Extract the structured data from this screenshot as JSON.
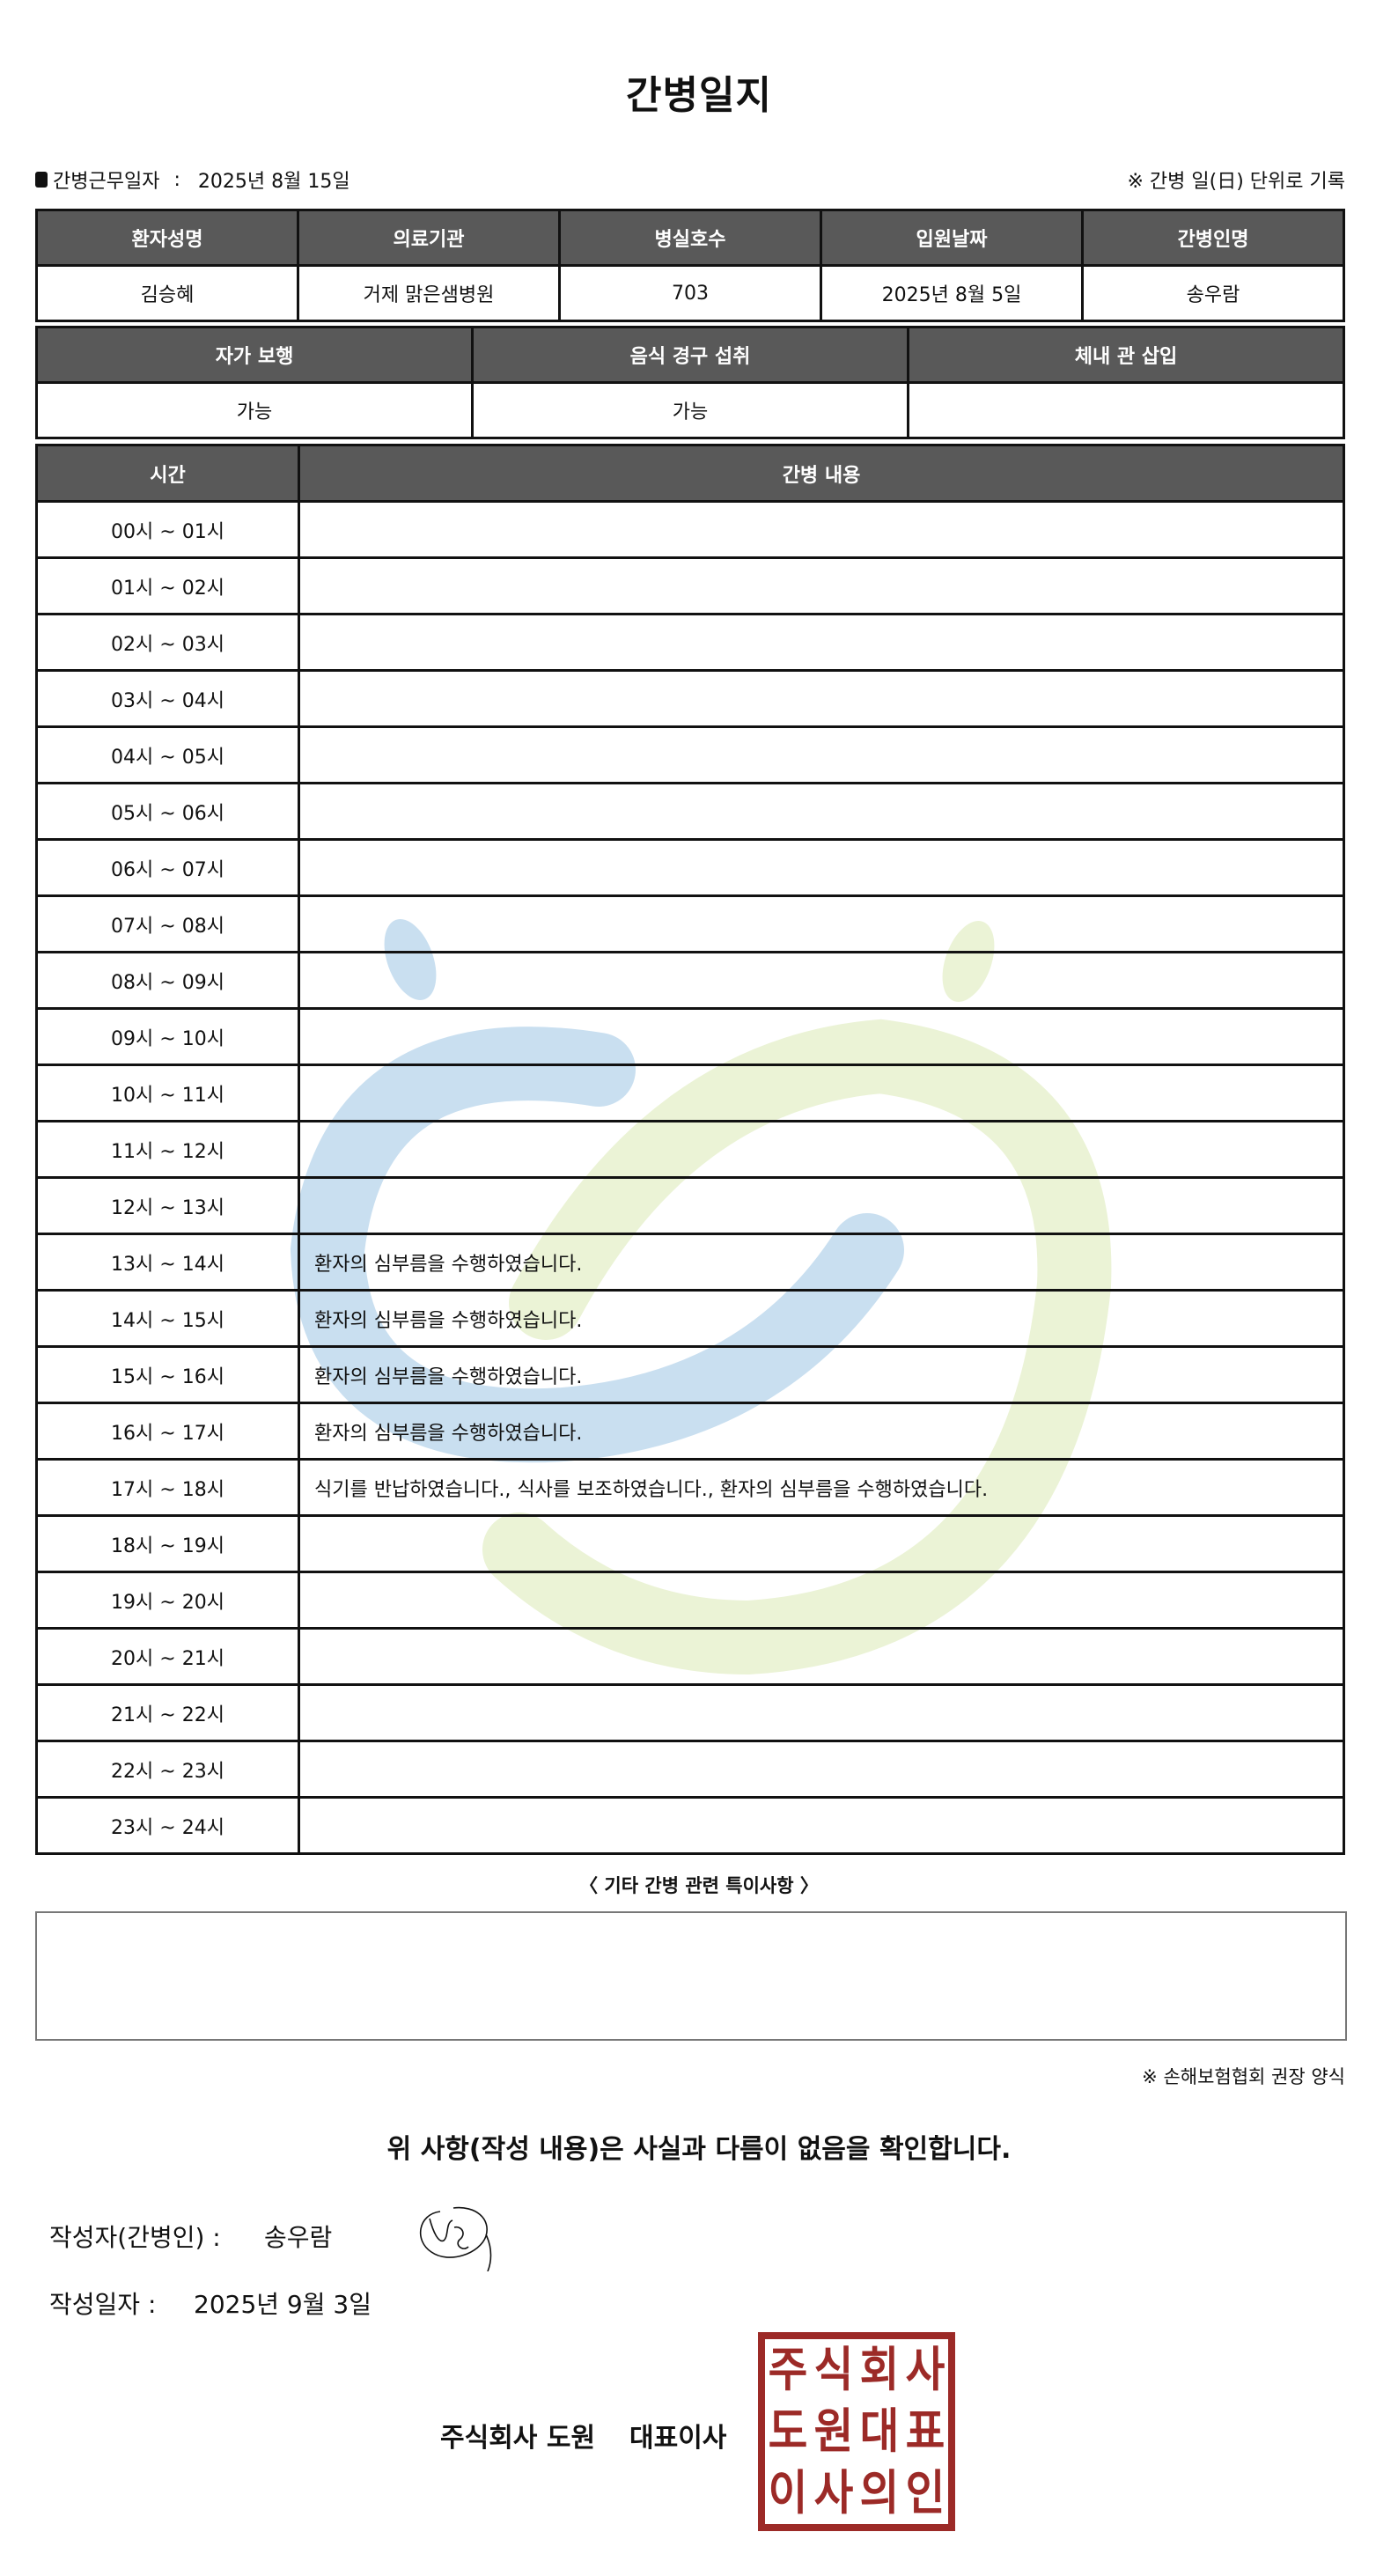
{
  "title": "간병일지",
  "work_date": {
    "label": "간병근무일자",
    "separator": ":",
    "value": "2025년 8월 15일"
  },
  "unit_note": "※ 간병 일(日) 단위로 기록",
  "info_table": {
    "headers": [
      "환자성명",
      "의료기관",
      "병실호수",
      "입원날짜",
      "간병인명"
    ],
    "values": [
      "김승혜",
      "거제 맑은샘병원",
      "703",
      "2025년 8월 5일",
      "송우람"
    ]
  },
  "status_table": {
    "headers": [
      "자가 보행",
      "음식 경구 섭취",
      "체내 관 삽입"
    ],
    "values": [
      "가능",
      "가능",
      ""
    ]
  },
  "log_table": {
    "headers": [
      "시간",
      "간병 내용"
    ],
    "rows": [
      {
        "time": "00시 ~ 01시",
        "content": ""
      },
      {
        "time": "01시 ~ 02시",
        "content": ""
      },
      {
        "time": "02시 ~ 03시",
        "content": ""
      },
      {
        "time": "03시 ~ 04시",
        "content": ""
      },
      {
        "time": "04시 ~ 05시",
        "content": ""
      },
      {
        "time": "05시 ~ 06시",
        "content": ""
      },
      {
        "time": "06시 ~ 07시",
        "content": ""
      },
      {
        "time": "07시 ~ 08시",
        "content": ""
      },
      {
        "time": "08시 ~ 09시",
        "content": ""
      },
      {
        "time": "09시 ~ 10시",
        "content": ""
      },
      {
        "time": "10시 ~ 11시",
        "content": ""
      },
      {
        "time": "11시 ~ 12시",
        "content": ""
      },
      {
        "time": "12시 ~ 13시",
        "content": ""
      },
      {
        "time": "13시 ~ 14시",
        "content": "환자의 심부름을 수행하였습니다."
      },
      {
        "time": "14시 ~ 15시",
        "content": "환자의 심부름을 수행하였습니다."
      },
      {
        "time": "15시 ~ 16시",
        "content": "환자의 심부름을 수행하였습니다."
      },
      {
        "time": "16시 ~ 17시",
        "content": "환자의 심부름을 수행하였습니다."
      },
      {
        "time": "17시 ~ 18시",
        "content": "식기를 반납하였습니다., 식사를 보조하였습니다., 환자의 심부름을 수행하였습니다."
      },
      {
        "time": "18시 ~ 19시",
        "content": ""
      },
      {
        "time": "19시 ~ 20시",
        "content": ""
      },
      {
        "time": "20시 ~ 21시",
        "content": ""
      },
      {
        "time": "21시 ~ 22시",
        "content": ""
      },
      {
        "time": "22시 ~ 23시",
        "content": ""
      },
      {
        "time": "23시 ~ 24시",
        "content": ""
      }
    ]
  },
  "remarks": {
    "title": "〈 기타 간병 관련 특이사항 〉",
    "value": ""
  },
  "association_note": "※ 손해보험협회 권장 양식",
  "confirmation": "위 사항(작성 내용)은 사실과 다름이 없음을 확인합니다.",
  "writer": {
    "label": "작성자(간병인) :",
    "name": "송우람"
  },
  "written_date": {
    "label": "작성일자 :",
    "value": "2025년 9월 3일"
  },
  "company": {
    "name": "주식회사 도원",
    "title": "대표이사"
  },
  "stamp": {
    "text": "주식회사도원대표이사의인",
    "color": "#9c2a27"
  },
  "colors": {
    "header_bg": "#595959",
    "watermark_blue": "#c9dff0",
    "watermark_green": "#ebf3d6"
  }
}
